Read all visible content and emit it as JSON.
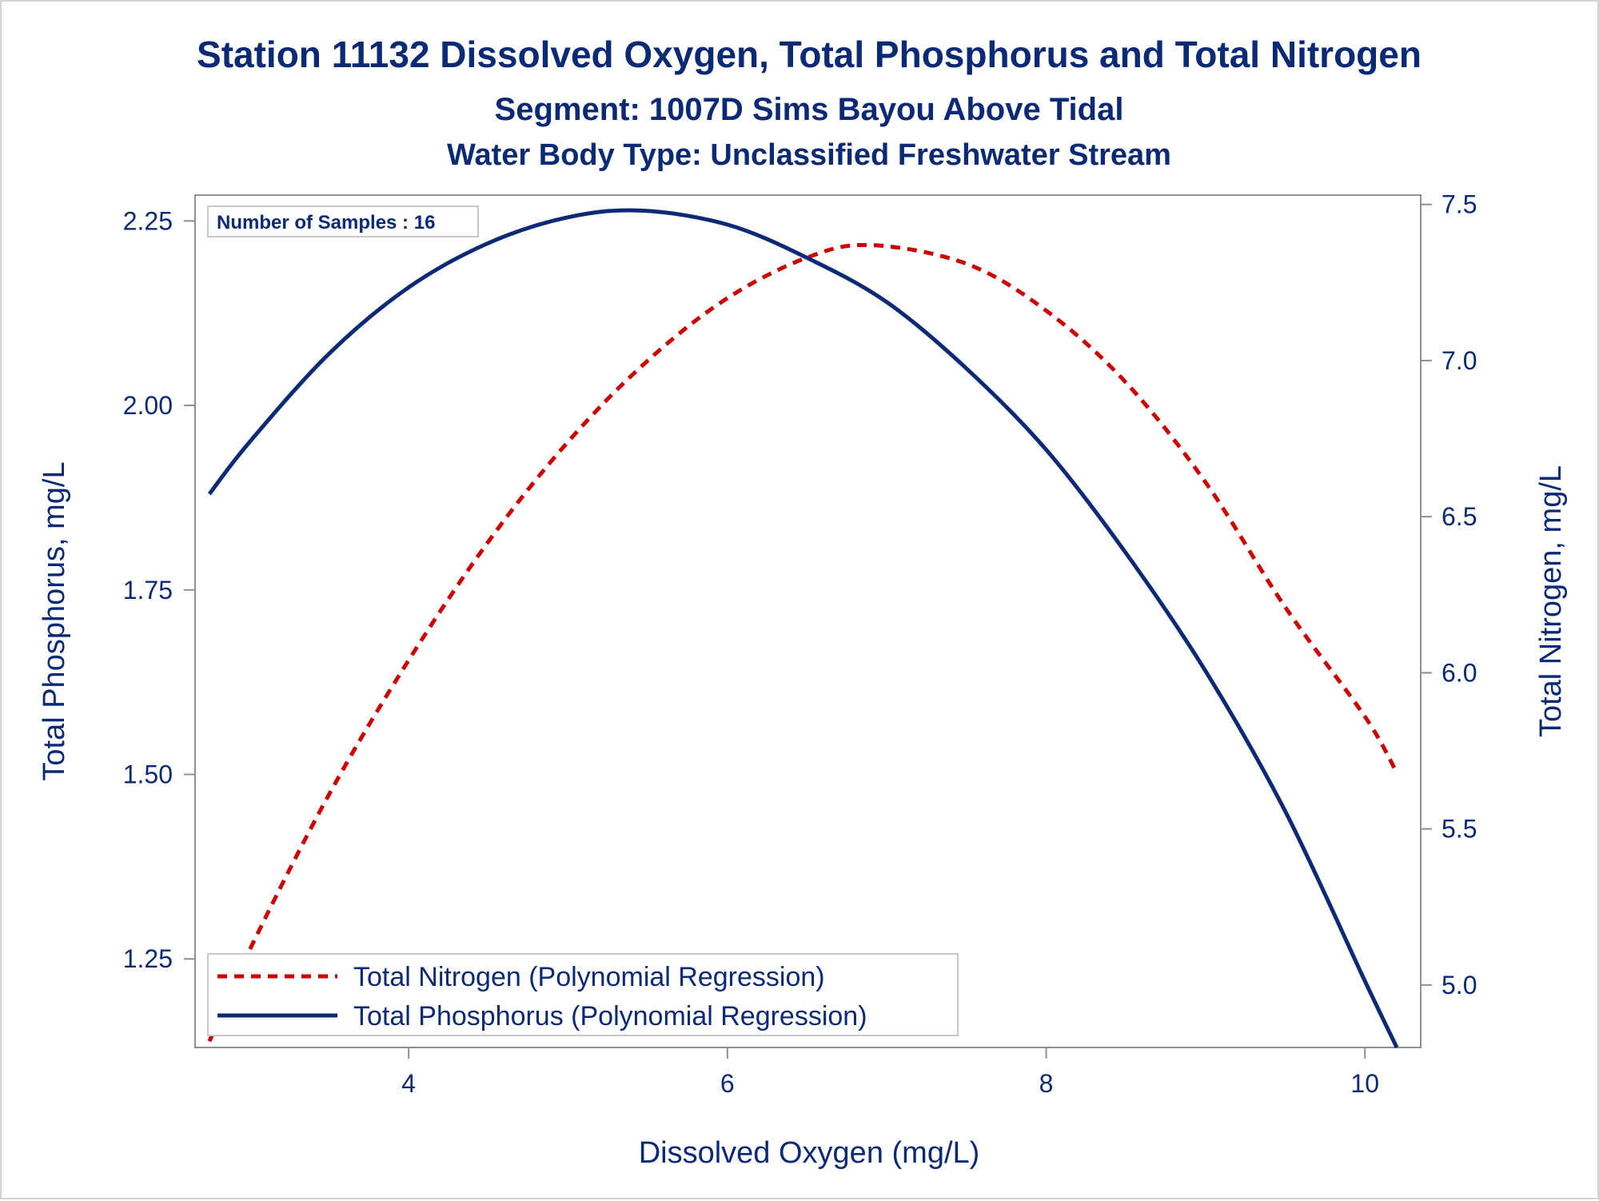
{
  "chart_data": {
    "type": "line",
    "title": "Station 11132  Dissolved Oxygen, Total Phosphorus and Total Nitrogen",
    "subtitle": "Segment: 1007D  Sims Bayou Above Tidal",
    "subtitle2": "Water Body Type: Unclassified Freshwater Stream",
    "xlabel": "Dissolved Oxygen (mg/L)",
    "ylabel_left": "Total Phosphorus, mg/L",
    "ylabel_right": "Total Nitrogen, mg/L",
    "annotation": "Number of Samples : 16",
    "xlim": [
      2.66,
      10.35
    ],
    "ylim_left": [
      1.13,
      2.285
    ],
    "ylim_right": [
      4.8,
      7.53
    ],
    "x_ticks": [
      4,
      6,
      8,
      10
    ],
    "x_tick_labels": [
      "4",
      "6",
      "8",
      "10"
    ],
    "y_left_ticks": [
      1.25,
      1.5,
      1.75,
      2.0,
      2.25
    ],
    "y_left_tick_labels": [
      "1.25",
      "1.50",
      "1.75",
      "2.00",
      "2.25"
    ],
    "y_right_ticks": [
      5.0,
      5.5,
      6.0,
      6.5,
      7.0,
      7.5
    ],
    "y_right_tick_labels": [
      "5.0",
      "5.5",
      "6.0",
      "6.5",
      "7.0",
      "7.5"
    ],
    "grid": false,
    "legend_position": "bottom-left inside",
    "series": [
      {
        "name": "Total Nitrogen (Polynomial Regression)",
        "axis": "right",
        "style": "dashed",
        "color": "#cc0000",
        "x": [
          2.75,
          3.0,
          3.5,
          4.0,
          4.5,
          5.0,
          5.5,
          6.0,
          6.5,
          6.9,
          7.5,
          8.0,
          8.5,
          9.0,
          9.5,
          10.0,
          10.2
        ],
        "y": [
          4.82,
          5.11,
          5.61,
          6.04,
          6.42,
          6.74,
          7.0,
          7.2,
          7.33,
          7.37,
          7.31,
          7.16,
          6.93,
          6.61,
          6.21,
          5.86,
          5.68
        ]
      },
      {
        "name": "Total Phosphorus (Polynomial Regression)",
        "axis": "left",
        "style": "solid",
        "color": "#0b2a75",
        "x": [
          2.75,
          3.0,
          3.5,
          4.0,
          4.5,
          5.0,
          5.46,
          6.0,
          6.5,
          7.0,
          7.5,
          8.0,
          8.5,
          9.0,
          9.5,
          10.0,
          10.2
        ],
        "y": [
          1.88,
          1.95,
          2.07,
          2.16,
          2.22,
          2.255,
          2.264,
          2.245,
          2.2,
          2.14,
          2.05,
          1.94,
          1.8,
          1.64,
          1.45,
          1.22,
          1.13
        ]
      }
    ]
  }
}
